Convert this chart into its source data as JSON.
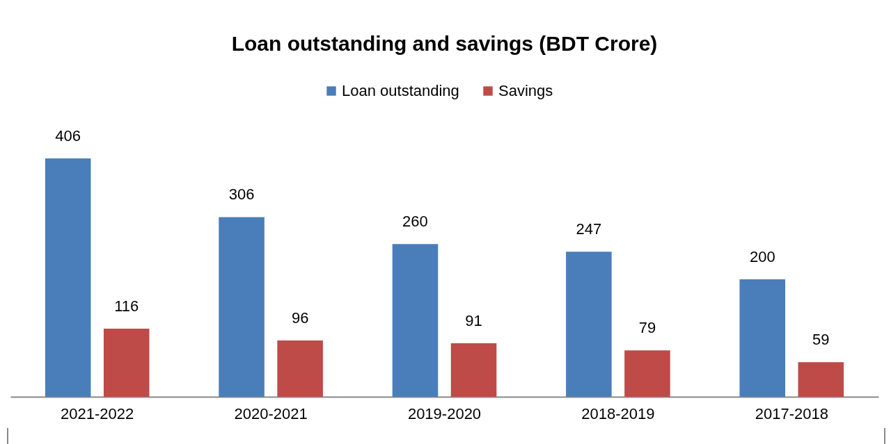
{
  "chart_data": {
    "type": "bar",
    "title": "Loan outstanding and savings (BDT Crore)",
    "categories": [
      "2021-2022",
      "2020-2021",
      "2019-2020",
      "2018-2019",
      "2017-2018"
    ],
    "series": [
      {
        "name": "Loan outstanding",
        "color": "#4a7ebb",
        "values": [
          406,
          306,
          260,
          247,
          200
        ]
      },
      {
        "name": "Savings",
        "color": "#be4b48",
        "values": [
          116,
          96,
          91,
          79,
          59
        ]
      }
    ],
    "data_labels": true,
    "legend": "top",
    "grid": false
  }
}
